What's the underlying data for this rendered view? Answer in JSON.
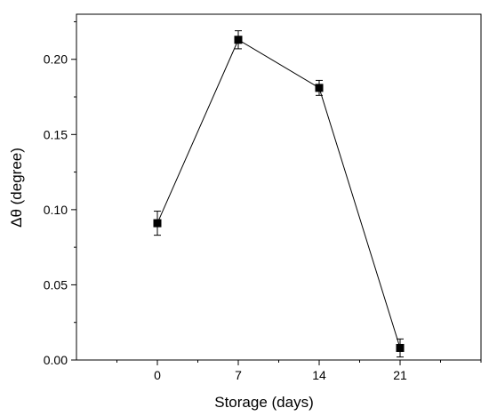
{
  "chart_data": {
    "type": "line",
    "xlabel": "Storage (days)",
    "ylabel": "Δθ (degree)",
    "x_ticks": [
      "0",
      "7",
      "14",
      "21"
    ],
    "y_ticks": [
      "0.00",
      "0.05",
      "0.10",
      "0.15",
      "0.20"
    ],
    "xlim": [
      -7,
      28
    ],
    "ylim": [
      0,
      0.23
    ],
    "grid": false,
    "marker": "square",
    "series": [
      {
        "x": [
          0,
          7,
          14,
          21
        ],
        "y": [
          0.091,
          0.213,
          0.181,
          0.008
        ],
        "error": [
          0.008,
          0.006,
          0.005,
          0.006
        ]
      }
    ]
  }
}
